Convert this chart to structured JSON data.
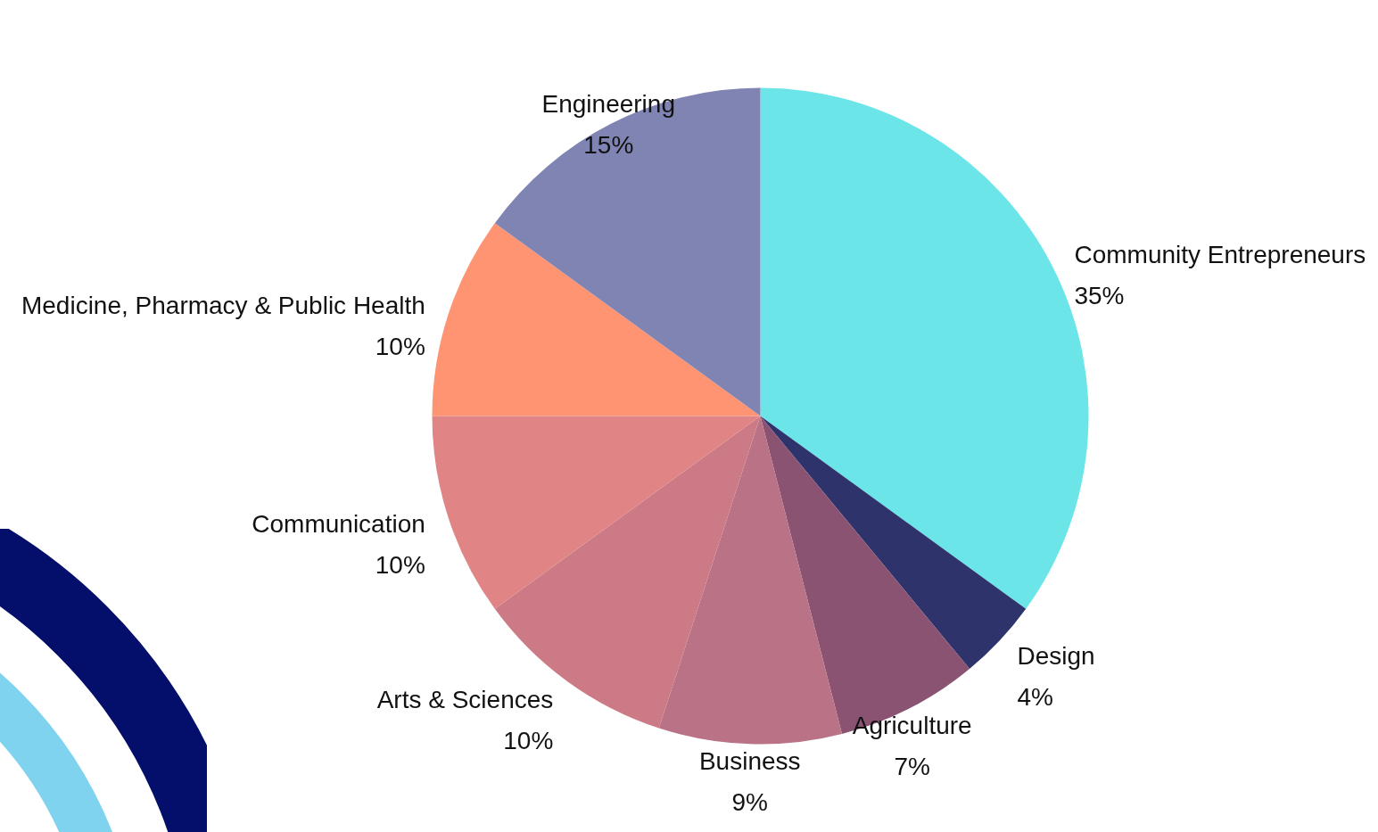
{
  "chart_data": {
    "type": "pie",
    "categories": [
      "Community Entrepreneurs",
      "Design",
      "Agriculture",
      "Business",
      "Arts & Sciences",
      "Communication",
      "Medicine, Pharmacy & Public Health",
      "Engineering"
    ],
    "values": [
      35,
      4,
      7,
      9,
      10,
      10,
      10,
      15
    ],
    "value_labels": [
      "35%",
      "4%",
      "7%",
      "9%",
      "10%",
      "10%",
      "10%",
      "15%"
    ],
    "colors": [
      "#6ce5e8",
      "#2f336b",
      "#8b5372",
      "#b97286",
      "#cc7a85",
      "#e08485",
      "#ff9472",
      "#8084b3"
    ]
  }
}
